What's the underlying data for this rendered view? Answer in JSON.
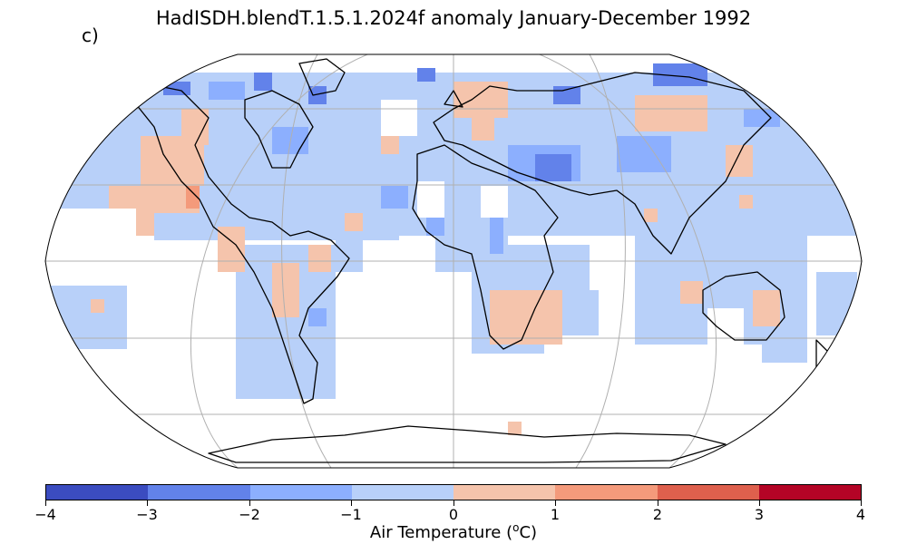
{
  "title": "HadISDH.blendT.1.5.1.2024f anomaly January-December 1992",
  "panel_label": "c)",
  "colorbar": {
    "label_prefix": "Air Temperature (",
    "label_sup": "o",
    "label_suffix": "C)",
    "ticks": [
      "−4",
      "−3",
      "−2",
      "−1",
      "0",
      "1",
      "2",
      "3",
      "4"
    ],
    "colors": [
      "#3b4cc0",
      "#6282ea",
      "#8caffe",
      "#b8d0f9",
      "#f5c4ac",
      "#f49a7b",
      "#de604d",
      "#b40426"
    ],
    "range": [
      -4,
      4
    ]
  },
  "map": {
    "projection": "Robinson",
    "missing_color": "#ffffff",
    "graticule_color": "#b0b0b0",
    "coast_color": "#000000"
  }
}
